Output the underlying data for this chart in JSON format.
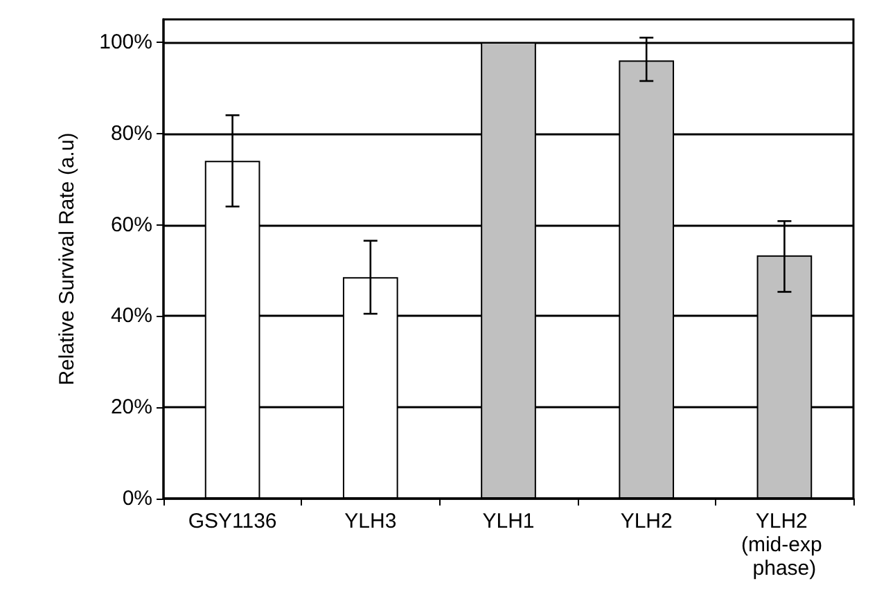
{
  "chart_data": {
    "type": "bar",
    "ylabel": "Relative Survival Rate (a.u)",
    "categories": [
      "GSY1136",
      "YLH3",
      "YLH1",
      "YLH2",
      "YLH2 (mid-exp phase)"
    ],
    "values": [
      74,
      48.5,
      100,
      96,
      53.3
    ],
    "colors": [
      "#ffffff",
      "#ffffff",
      "#c0c0c0",
      "#c0c0c0",
      "#c0c0c0"
    ],
    "errors": [
      [
        64,
        84
      ],
      [
        40.5,
        56.5
      ],
      null,
      [
        91.5,
        101
      ],
      [
        45.3,
        60.8
      ]
    ],
    "ylim": [
      0,
      105
    ],
    "yticks": [
      {
        "value": 0,
        "label": "0%"
      },
      {
        "value": 20,
        "label": "20%"
      },
      {
        "value": 40,
        "label": "40%"
      },
      {
        "value": 60,
        "label": "60%"
      },
      {
        "value": 80,
        "label": "80%"
      },
      {
        "value": 100,
        "label": "100%"
      }
    ],
    "grid": "y"
  }
}
